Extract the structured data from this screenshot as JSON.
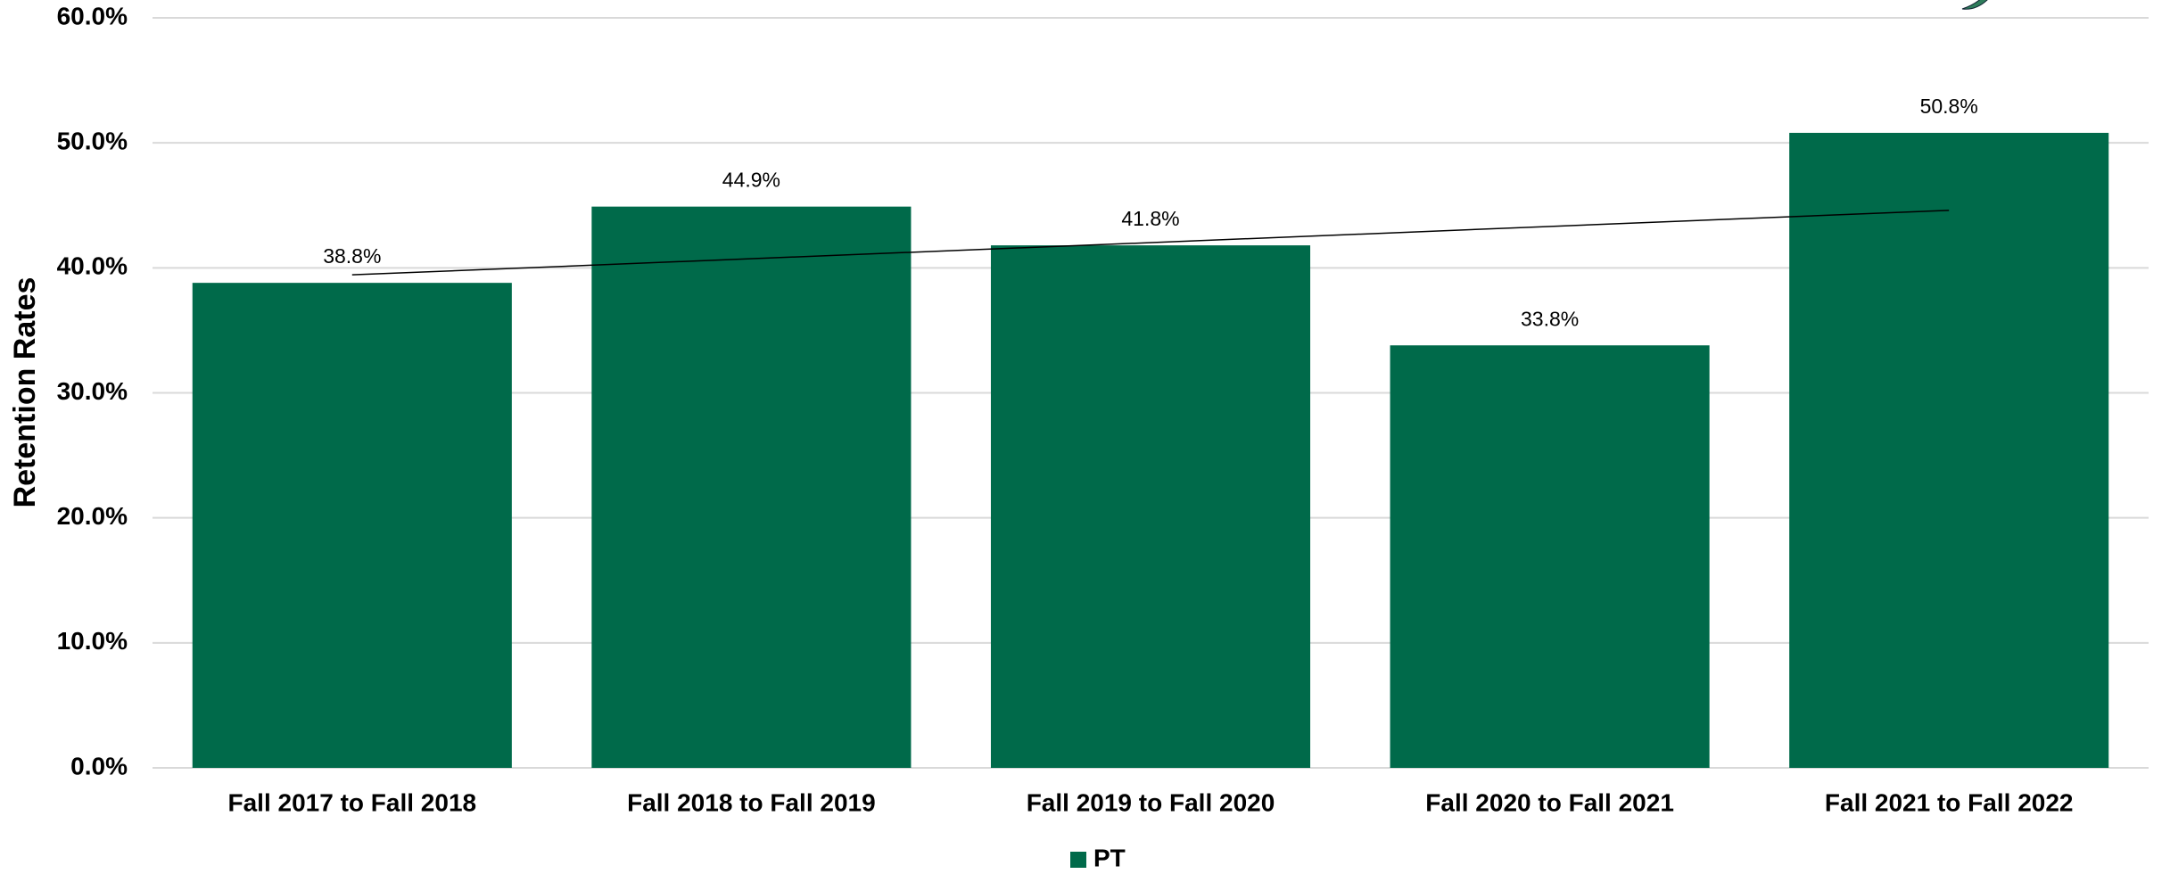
{
  "chart_data": {
    "type": "bar",
    "y_axis_label": "Retention Rates",
    "categories": [
      "Fall 2017 to Fall 2018",
      "Fall 2018 to Fall 2019",
      "Fall 2019 to Fall 2020",
      "Fall 2020 to Fall 2021",
      "Fall 2021 to Fall 2022"
    ],
    "series": [
      {
        "name": "PT",
        "color": "#006a4a",
        "values": [
          38.8,
          44.9,
          41.8,
          33.8,
          50.8
        ],
        "value_labels": [
          "38.8%",
          "44.9%",
          "41.8%",
          "33.8%",
          "50.8%"
        ]
      }
    ],
    "trendline": "linear",
    "ylim": [
      0,
      60
    ],
    "yticks": [
      {
        "value": 0,
        "label": "0.0%"
      },
      {
        "value": 10,
        "label": "10.0%"
      },
      {
        "value": 20,
        "label": "20.0%"
      },
      {
        "value": 30,
        "label": "30.0%"
      },
      {
        "value": 40,
        "label": "40.0%"
      },
      {
        "value": 50,
        "label": "50.0%"
      },
      {
        "value": 60,
        "label": "60.0%"
      }
    ],
    "grid": true,
    "legend": "bottom"
  }
}
